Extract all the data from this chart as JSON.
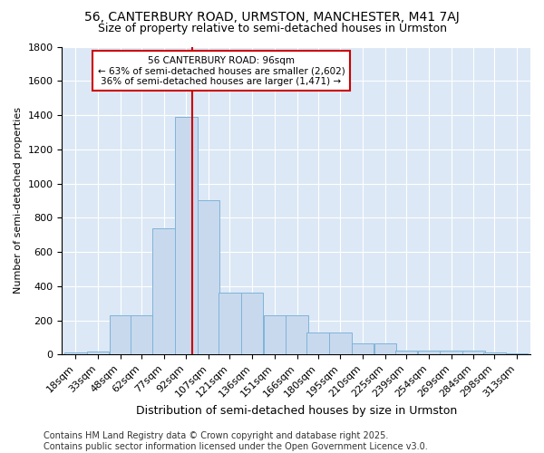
{
  "title1": "56, CANTERBURY ROAD, URMSTON, MANCHESTER, M41 7AJ",
  "title2": "Size of property relative to semi-detached houses in Urmston",
  "xlabel": "Distribution of semi-detached houses by size in Urmston",
  "ylabel": "Number of semi-detached properties",
  "footer1": "Contains HM Land Registry data © Crown copyright and database right 2025.",
  "footer2": "Contains public sector information licensed under the Open Government Licence v3.0.",
  "annotation_line1": "56 CANTERBURY ROAD: 96sqm",
  "annotation_line2": "← 63% of semi-detached houses are smaller (2,602)",
  "annotation_line3": "36% of semi-detached houses are larger (1,471) →",
  "property_size": 96,
  "bins": [
    18,
    33,
    48,
    62,
    77,
    92,
    107,
    121,
    136,
    151,
    166,
    180,
    195,
    210,
    225,
    239,
    254,
    269,
    284,
    298,
    313
  ],
  "bar_heights": [
    15,
    20,
    230,
    230,
    740,
    1390,
    900,
    360,
    360,
    230,
    230,
    130,
    130,
    65,
    65,
    25,
    25,
    25,
    25,
    10,
    5
  ],
  "bar_color": "#c8d9ee",
  "bar_edge_color": "#7fb3d8",
  "redline_color": "#cc0000",
  "bg_color": "#dce8f5",
  "fig_bg_color": "#ffffff",
  "annotation_box_color": "#ffffff",
  "annotation_box_edge": "#cc0000",
  "yticks": [
    0,
    200,
    400,
    600,
    800,
    1000,
    1200,
    1400,
    1600,
    1800
  ],
  "ylim": [
    0,
    1800
  ],
  "title1_fontsize": 10,
  "title2_fontsize": 9,
  "xlabel_fontsize": 9,
  "ylabel_fontsize": 8,
  "tick_fontsize": 8,
  "footer_fontsize": 7
}
